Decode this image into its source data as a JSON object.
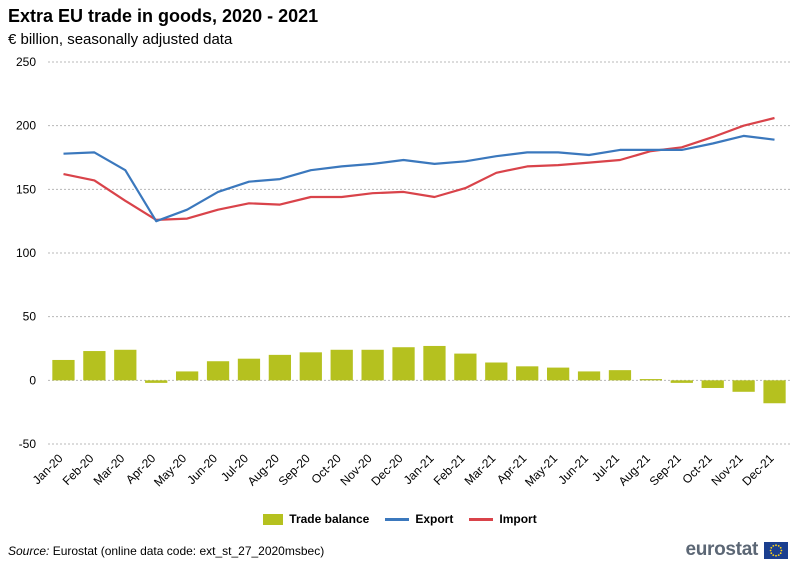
{
  "title": "Extra EU trade in goods, 2020 - 2021",
  "subtitle": "€ billion, seasonally adjusted data",
  "source_label": "Source:",
  "source_text": " Eurostat (online data code: ext_st_27_2020msbec)",
  "logo_text": "eurostat",
  "colors": {
    "trade_balance": "#b5c11f",
    "export": "#3b78bd",
    "import": "#d9434a",
    "grid": "#b8b8b8"
  },
  "chart_data": {
    "type": "bar+line",
    "title": "Extra EU trade in goods, 2020 - 2021",
    "subtitle": "€ billion, seasonally adjusted data",
    "ylim": [
      -50,
      250
    ],
    "yticks": [
      -50,
      0,
      50,
      100,
      150,
      200,
      250
    ],
    "grid": true,
    "legend_position": "bottom",
    "categories": [
      "Jan-20",
      "Feb-20",
      "Mar-20",
      "Apr-20",
      "May-20",
      "Jun-20",
      "Jul-20",
      "Aug-20",
      "Sep-20",
      "Oct-20",
      "Nov-20",
      "Dec-20",
      "Jan-21",
      "Feb-21",
      "Mar-21",
      "Apr-21",
      "May-21",
      "Jun-21",
      "Jul-21",
      "Aug-21",
      "Sep-21",
      "Oct-21",
      "Nov-21",
      "Dec-21"
    ],
    "series": [
      {
        "name": "Trade balance",
        "type": "bar",
        "values": [
          16,
          23,
          24,
          -2,
          7,
          15,
          17,
          20,
          22,
          24,
          24,
          26,
          27,
          21,
          14,
          11,
          10,
          7,
          8,
          1,
          -2,
          -6,
          -9,
          -18
        ]
      },
      {
        "name": "Export",
        "type": "line",
        "values": [
          178,
          179,
          165,
          125,
          134,
          148,
          156,
          158,
          165,
          168,
          170,
          173,
          170,
          172,
          176,
          179,
          179,
          177,
          181,
          181,
          181,
          186,
          192,
          189
        ]
      },
      {
        "name": "Import",
        "type": "line",
        "values": [
          162,
          157,
          141,
          126,
          127,
          134,
          139,
          138,
          144,
          144,
          147,
          148,
          144,
          151,
          163,
          168,
          169,
          171,
          173,
          180,
          183,
          191,
          200,
          206
        ]
      }
    ]
  }
}
